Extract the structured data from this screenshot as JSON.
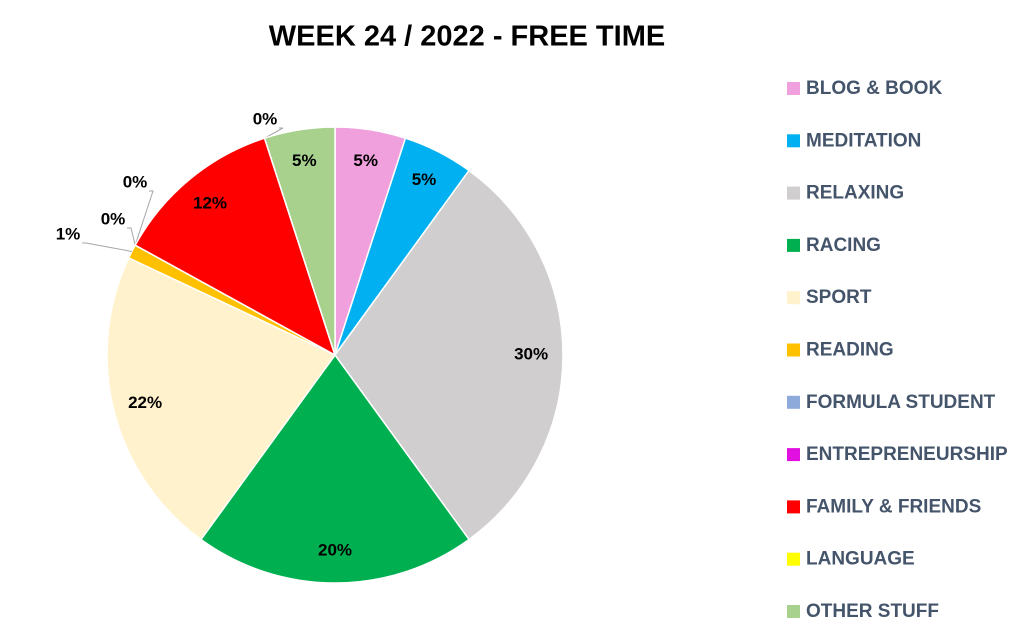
{
  "chart_data": {
    "type": "pie",
    "title": "WEEK 24 / 2022 - FREE TIME",
    "categories": [
      "BLOG & BOOK",
      "MEDITATION",
      "RELAXING",
      "RACING",
      "SPORT",
      "READING",
      "FORMULA STUDENT",
      "ENTREPRENEURSHIP",
      "FAMILY & FRIENDS",
      "LANGUAGE",
      "OTHER STUFF"
    ],
    "values": [
      5,
      5,
      30,
      20,
      22,
      1,
      0,
      0,
      12,
      0,
      5
    ],
    "value_labels": [
      "5%",
      "5%",
      "30%",
      "20%",
      "22%",
      "1%",
      "0%",
      "0%",
      "12%",
      "0%",
      "5%"
    ],
    "colors": [
      "#f0a0dc",
      "#00b0f0",
      "#d0cece",
      "#00b050",
      "#fff2cc",
      "#ffc000",
      "#8eaadb",
      "#e010e0",
      "#ff0000",
      "#ffff00",
      "#a9d18e"
    ],
    "legend": "right"
  }
}
